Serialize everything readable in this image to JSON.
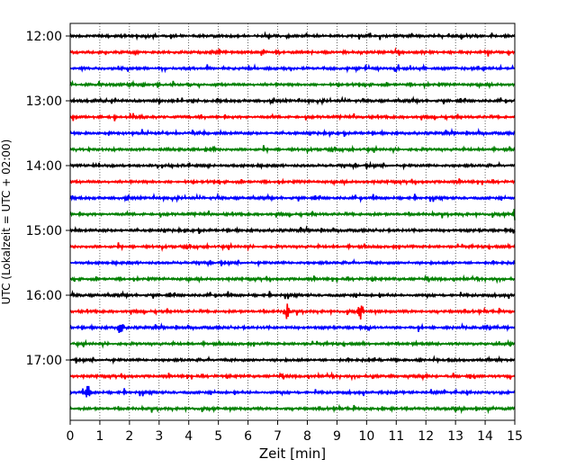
{
  "chart_data": {
    "type": "line",
    "xlabel": "Zeit  [min]",
    "ylabel": "UTC (Lokalzeit = UTC + 02:00)",
    "xlim": [
      0,
      15
    ],
    "x_ticks": [
      0,
      1,
      2,
      3,
      4,
      5,
      6,
      7,
      8,
      9,
      10,
      11,
      12,
      13,
      14,
      15
    ],
    "y_ticks": [
      "12:00",
      "13:00",
      "14:00",
      "15:00",
      "16:00",
      "17:00"
    ],
    "grid": "vertical dotted at each minute",
    "line_colors": [
      "#000000",
      "#ff0000",
      "#0000ff",
      "#008000"
    ],
    "traces": [
      {
        "start": "12:00",
        "color": "#000000"
      },
      {
        "start": "12:15",
        "color": "#ff0000"
      },
      {
        "start": "12:30",
        "color": "#0000ff"
      },
      {
        "start": "12:45",
        "color": "#008000"
      },
      {
        "start": "13:00",
        "color": "#000000"
      },
      {
        "start": "13:15",
        "color": "#ff0000"
      },
      {
        "start": "13:30",
        "color": "#0000ff"
      },
      {
        "start": "13:45",
        "color": "#008000"
      },
      {
        "start": "14:00",
        "color": "#000000"
      },
      {
        "start": "14:15",
        "color": "#ff0000"
      },
      {
        "start": "14:30",
        "color": "#0000ff"
      },
      {
        "start": "14:45",
        "color": "#008000"
      },
      {
        "start": "15:00",
        "color": "#000000"
      },
      {
        "start": "15:15",
        "color": "#ff0000"
      },
      {
        "start": "15:30",
        "color": "#0000ff"
      },
      {
        "start": "15:45",
        "color": "#008000"
      },
      {
        "start": "16:00",
        "color": "#000000"
      },
      {
        "start": "16:15",
        "color": "#ff0000"
      },
      {
        "start": "16:30",
        "color": "#0000ff"
      },
      {
        "start": "16:45",
        "color": "#008000"
      },
      {
        "start": "17:00",
        "color": "#000000"
      },
      {
        "start": "17:15",
        "color": "#ff0000"
      },
      {
        "start": "17:30",
        "color": "#0000ff"
      },
      {
        "start": "17:45",
        "color": "#008000"
      }
    ],
    "notable_events": [
      {
        "trace": "16:15",
        "minute": 7.3
      },
      {
        "trace": "16:15",
        "minute": 9.8
      },
      {
        "trace": "16:30",
        "minute": 1.7
      },
      {
        "trace": "14:45",
        "minute": 15.0
      },
      {
        "trace": "17:30",
        "minute": 0.6
      }
    ]
  }
}
